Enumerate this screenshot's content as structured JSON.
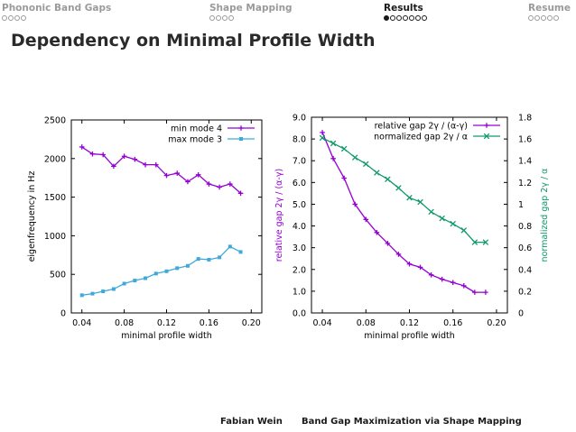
{
  "nav": {
    "sections": [
      {
        "title": "Phononic Band Gaps",
        "dots": 4,
        "filled": -1,
        "active": false
      },
      {
        "title": "Shape Mapping",
        "dots": 4,
        "filled": -1,
        "active": false
      },
      {
        "title": "Results",
        "dots": 7,
        "filled": 0,
        "active": true
      },
      {
        "title": "Resume",
        "dots": 5,
        "filled": -1,
        "active": false
      }
    ]
  },
  "slide": {
    "title": "Dependency on Minimal Profile Width"
  },
  "footer": {
    "author": "Fabian Wein",
    "talk": "Band Gap Maximization via Shape Mapping"
  },
  "chart_data": [
    {
      "type": "line",
      "xlabel": "minimal profile width",
      "ylabel": "eigenfrequency in Hz",
      "xlim": [
        0.03,
        0.21
      ],
      "ylim": [
        0,
        2500
      ],
      "xticks": [
        0.04,
        0.08,
        0.12,
        0.16,
        0.2
      ],
      "xtick_labels": [
        "0.04",
        "0.08",
        "0.12",
        "0.16",
        "0.20"
      ],
      "yticks": [
        0,
        500,
        1000,
        1500,
        2000,
        2500
      ],
      "ytick_labels": [
        "0",
        "500",
        "1000",
        "1500",
        "2000",
        "2500"
      ],
      "legend": "top-right",
      "grid": false,
      "x": [
        0.04,
        0.05,
        0.06,
        0.07,
        0.08,
        0.09,
        0.1,
        0.11,
        0.12,
        0.13,
        0.14,
        0.15,
        0.16,
        0.17,
        0.18,
        0.19
      ],
      "series": [
        {
          "name": "min mode 4",
          "color": "#9400d3",
          "marker": "plus",
          "values": [
            2150,
            2060,
            2050,
            1900,
            2030,
            1990,
            1920,
            1920,
            1780,
            1810,
            1700,
            1790,
            1670,
            1630,
            1670,
            1550
          ]
        },
        {
          "name": "max mode 3",
          "color": "#3fa9dc",
          "marker": "square",
          "values": [
            230,
            250,
            280,
            310,
            380,
            420,
            450,
            510,
            540,
            580,
            610,
            700,
            690,
            720,
            860,
            790
          ]
        }
      ]
    },
    {
      "type": "line",
      "xlabel": "minimal profile width",
      "ylabel": "relative gap 2γ / (α-γ)",
      "y2label": "normalized gap 2γ / α",
      "xlim": [
        0.03,
        0.21
      ],
      "ylim": [
        0,
        9
      ],
      "y2lim": [
        0,
        1.8
      ],
      "xticks": [
        0.04,
        0.08,
        0.12,
        0.16,
        0.2
      ],
      "xtick_labels": [
        "0.04",
        "0.08",
        "0.12",
        "0.16",
        "0.20"
      ],
      "yticks": [
        0,
        1,
        2,
        3,
        4,
        5,
        6,
        7,
        8,
        9
      ],
      "ytick_labels": [
        "0.0",
        "1.0",
        "2.0",
        "3.0",
        "4.0",
        "5.0",
        "6.0",
        "7.0",
        "8.0",
        "9.0"
      ],
      "y2ticks": [
        0,
        0.2,
        0.4,
        0.6,
        0.8,
        1.0,
        1.2,
        1.4,
        1.6,
        1.8
      ],
      "y2tick_labels": [
        "0",
        "0.2",
        "0.4",
        "0.6",
        "0.8",
        "1",
        "1.2",
        "1.4",
        "1.6",
        "1.8"
      ],
      "legend": "top-right",
      "grid": false,
      "x": [
        0.04,
        0.05,
        0.06,
        0.07,
        0.08,
        0.09,
        0.1,
        0.11,
        0.12,
        0.13,
        0.14,
        0.15,
        0.16,
        0.17,
        0.18,
        0.19
      ],
      "series": [
        {
          "name": "relative gap 2γ / (α-γ)",
          "color": "#9400d3",
          "marker": "plus",
          "axis": "y",
          "values": [
            8.3,
            7.1,
            6.2,
            5.0,
            4.3,
            3.7,
            3.2,
            2.7,
            2.25,
            2.1,
            1.75,
            1.55,
            1.4,
            1.25,
            0.95,
            0.95
          ]
        },
        {
          "name": "normalized gap 2γ / α",
          "color": "#119a6a",
          "marker": "cross",
          "axis": "y2",
          "values": [
            1.61,
            1.56,
            1.51,
            1.43,
            1.37,
            1.29,
            1.23,
            1.15,
            1.06,
            1.02,
            0.93,
            0.87,
            0.82,
            0.76,
            0.65,
            0.65
          ]
        }
      ]
    }
  ]
}
